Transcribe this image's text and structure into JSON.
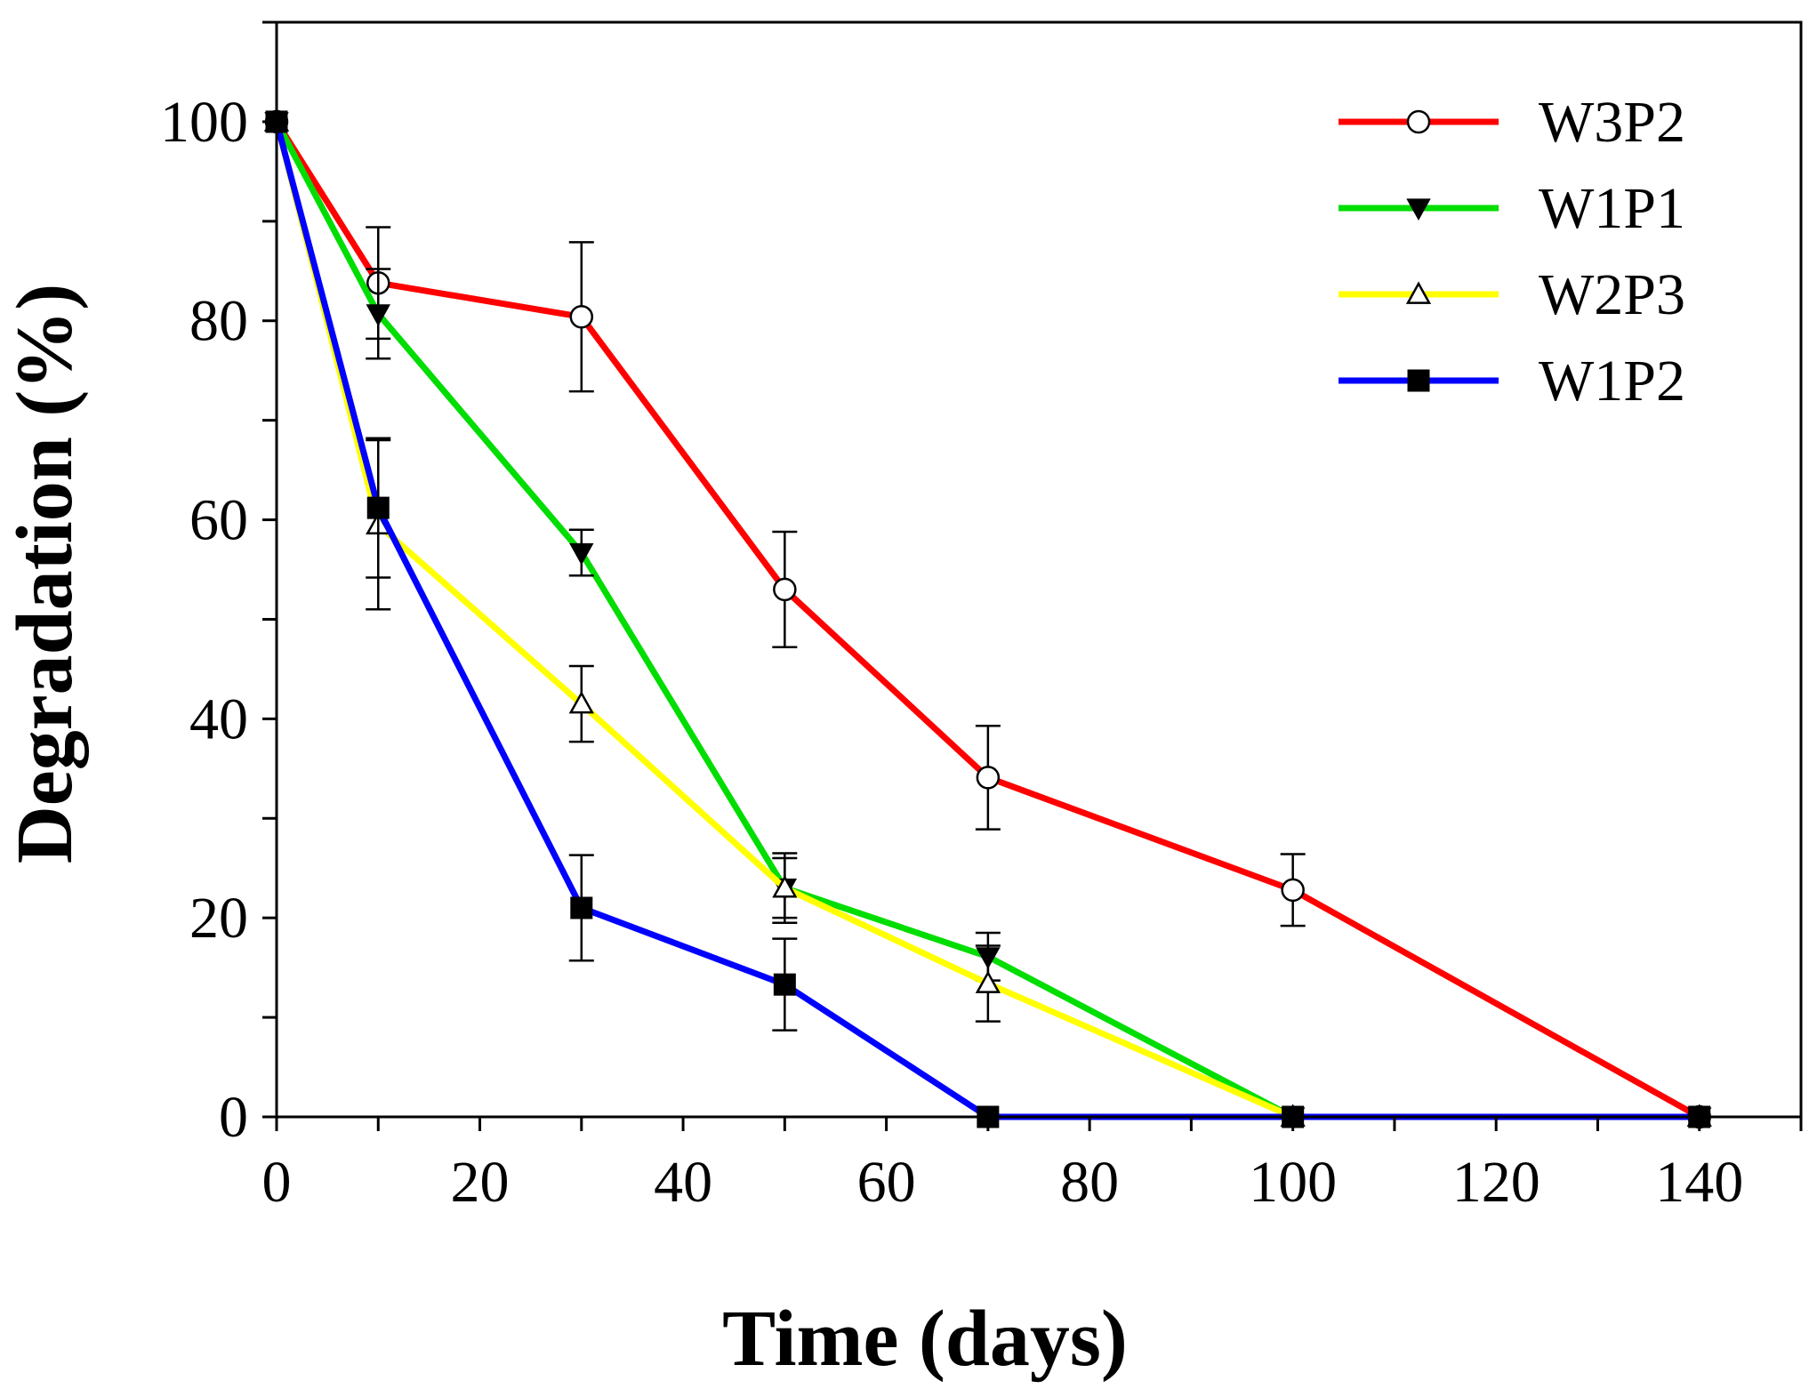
{
  "chart_data": {
    "type": "line",
    "title": "",
    "xlabel": "Time (days)",
    "ylabel": "Degradation (%)",
    "xlim": [
      0,
      150
    ],
    "ylim": [
      0,
      110
    ],
    "xticks": [
      0,
      20,
      40,
      60,
      80,
      100,
      120,
      140
    ],
    "yticks": [
      0,
      20,
      40,
      60,
      80,
      100
    ],
    "grid": false,
    "legend_position": "top-right",
    "series": [
      {
        "name": "W3P2",
        "color": "#ff0000",
        "marker": "circle-open",
        "x": [
          0,
          10,
          30,
          50,
          70,
          100,
          140
        ],
        "y": [
          100,
          83.8,
          80.4,
          53,
          34.1,
          22.8,
          0
        ],
        "err": [
          0,
          5.6,
          7.5,
          5.8,
          5.2,
          3.6,
          0
        ]
      },
      {
        "name": "W1P1",
        "color": "#00dd00",
        "marker": "triangle-down-filled",
        "x": [
          0,
          10,
          30,
          50,
          70,
          100,
          140
        ],
        "y": [
          100,
          80.7,
          56.7,
          23,
          16.1,
          0,
          0
        ],
        "err": [
          0,
          4.5,
          2.3,
          3.5,
          2.4,
          0,
          0
        ]
      },
      {
        "name": "W2P3",
        "color": "#ffff00",
        "marker": "triangle-up-open",
        "x": [
          0,
          10,
          30,
          50,
          70,
          100,
          140
        ],
        "y": [
          100,
          59.5,
          41.5,
          23,
          13.4,
          0,
          0
        ],
        "err": [
          0,
          8.5,
          3.8,
          3,
          3.8,
          0,
          0
        ]
      },
      {
        "name": "W1P2",
        "color": "#0000ff",
        "marker": "square-filled",
        "x": [
          0,
          10,
          30,
          50,
          70,
          100,
          140
        ],
        "y": [
          100,
          61.2,
          21,
          13.3,
          0,
          0,
          0
        ],
        "err": [
          0,
          7,
          5.3,
          4.6,
          0,
          0,
          0
        ]
      }
    ]
  }
}
